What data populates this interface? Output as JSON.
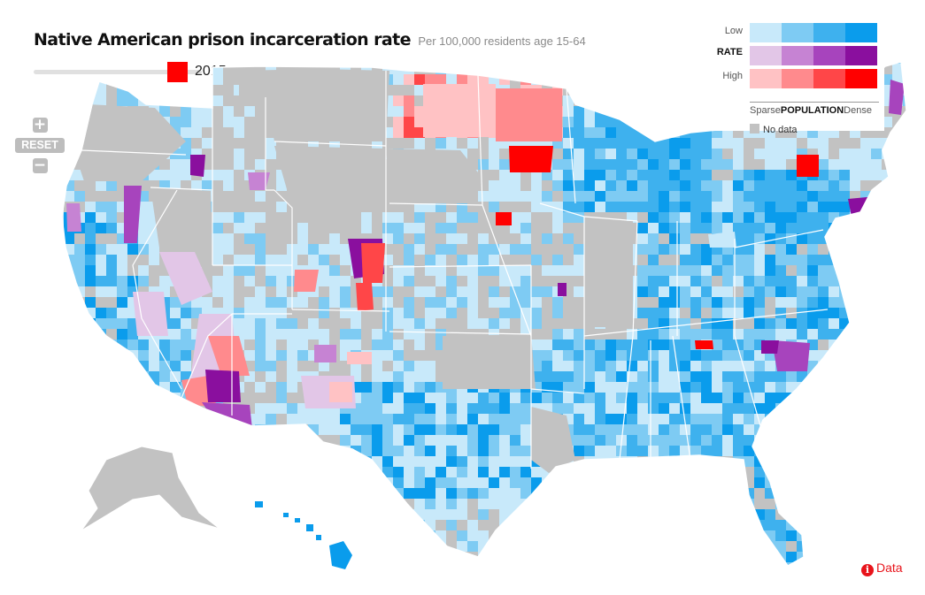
{
  "header": {
    "title": "Native American prison incarceration rate",
    "subtitle": "Per 100,000 residents age 15-64"
  },
  "timeline": {
    "year": "2015"
  },
  "zoom": {
    "in_label": "+",
    "reset_label": "RESET",
    "out_label": "−"
  },
  "legend": {
    "rate_low": "Low",
    "rate_mid": "RATE",
    "rate_high": "High",
    "pop_sparse": "Sparse",
    "pop_mid": "POPULATION",
    "pop_dense": "Dense",
    "no_data": "No data",
    "grid": [
      [
        "#c8e9fa",
        "#7ecbf3",
        "#3eb1ee",
        "#0a9cec"
      ],
      [
        "#e2c6e7",
        "#c683d3",
        "#a744bd",
        "#8a0f9e"
      ],
      [
        "#ffc2c4",
        "#ff8a8d",
        "#ff4648",
        "#ff0000"
      ]
    ],
    "no_data_color": "#c2c2c2"
  },
  "data_link": {
    "label": "Data"
  }
}
